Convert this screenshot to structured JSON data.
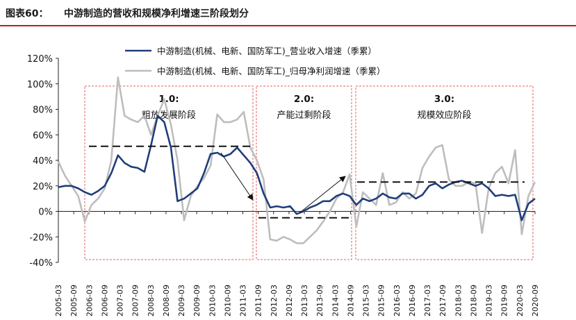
{
  "header": {
    "figure_number": "图表60：",
    "figure_title": "中游制造的营收和规模净利增速三阶段划分"
  },
  "colors": {
    "revenue": "#1f3d7a",
    "profit": "#bdbdbd",
    "phase_box": "#e06060",
    "rule": "#b22222"
  },
  "chart_data": {
    "type": "line",
    "ylim": [
      -40,
      120
    ],
    "y_ticks": [
      "120%",
      "100%",
      "80%",
      "60%",
      "40%",
      "20%",
      "0%",
      "-20%",
      "-40%"
    ],
    "x_tick_labels": [
      "2005-03",
      "2005-09",
      "2006-03",
      "2006-09",
      "2007-03",
      "2007-09",
      "2008-03",
      "2008-09",
      "2009-03",
      "2009-09",
      "2010-03",
      "2010-09",
      "2011-03",
      "2011-09",
      "2012-03",
      "2012-09",
      "2013-03",
      "2013-09",
      "2014-03",
      "2014-09",
      "2015-03",
      "2015-09",
      "2016-03",
      "2016-09",
      "2017-03",
      "2017-09",
      "2018-03",
      "2018-09",
      "2019-03",
      "2019-09",
      "2020-03",
      "2020-09"
    ],
    "series": [
      {
        "name": "中游制造(机械、电新、国防军工)_营业收入增速（季累）",
        "values": [
          19,
          20,
          20,
          18,
          15,
          13,
          16,
          20,
          30,
          44,
          38,
          35,
          34,
          31,
          52,
          75,
          70,
          50,
          8,
          10,
          14,
          18,
          30,
          45,
          46,
          43,
          45,
          50,
          44,
          38,
          30,
          14,
          3,
          4,
          3,
          4,
          -2,
          0,
          3,
          5,
          8,
          8,
          12,
          14,
          12,
          5,
          10,
          8,
          10,
          14,
          11,
          10,
          14,
          14,
          10,
          13,
          20,
          22,
          18,
          21,
          23,
          24,
          22,
          20,
          22,
          18,
          12,
          13,
          12,
          13,
          -7,
          6,
          10
        ]
      },
      {
        "name": "中游制造(机械、电新、国防军工)_归母净利润增速（季累）",
        "values": [
          39,
          28,
          20,
          12,
          -8,
          5,
          10,
          18,
          40,
          105,
          75,
          72,
          70,
          75,
          60,
          75,
          88,
          68,
          40,
          -7,
          12,
          20,
          26,
          36,
          76,
          70,
          70,
          72,
          78,
          50,
          40,
          25,
          -22,
          -23,
          -20,
          -22,
          -25,
          -25,
          -20,
          -15,
          -8,
          0,
          10,
          15,
          29,
          -12,
          15,
          10,
          5,
          30,
          5,
          7,
          15,
          10,
          14,
          34,
          43,
          50,
          52,
          25,
          20,
          20,
          23,
          22,
          -17,
          18,
          30,
          35,
          22,
          48,
          -18,
          12,
          23
        ]
      }
    ],
    "phases": [
      {
        "number": "1.0:",
        "label": "粗放发展阶段"
      },
      {
        "number": "2.0:",
        "label": "产能过剩阶段"
      },
      {
        "number": "3.0:",
        "label": "规模效应阶段"
      }
    ],
    "trend_levels": [
      51,
      -5,
      23
    ],
    "grid": false,
    "legend_position": "top"
  }
}
